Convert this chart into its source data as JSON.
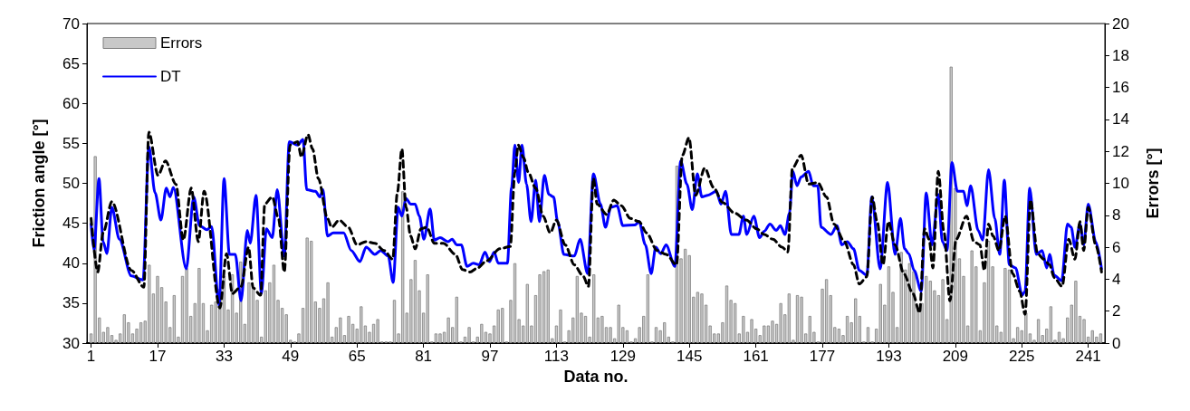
{
  "chart_data": {
    "type": "bar",
    "xlabel": "Data no.",
    "ylabel": "Friction angle [°]",
    "y2label": "Errors [°]",
    "legend": "top left",
    "x": [
      1,
      2,
      3,
      4,
      5,
      6,
      7,
      8,
      9,
      10,
      11,
      12,
      13,
      14,
      15,
      16,
      17,
      18,
      19,
      20,
      21,
      22,
      23,
      24,
      25,
      26,
      27,
      28,
      29,
      30,
      31,
      32,
      33,
      34,
      35,
      36,
      37,
      38,
      39,
      40,
      41,
      42,
      43,
      44,
      45,
      46,
      47,
      48,
      49,
      50,
      51,
      52,
      53,
      54,
      55,
      56,
      57,
      58,
      59,
      60,
      61,
      62,
      63,
      64,
      65,
      66,
      67,
      68,
      69,
      70,
      71,
      72,
      73,
      74,
      75,
      76,
      77,
      78,
      79,
      80,
      81,
      82,
      83,
      84,
      85,
      86,
      87,
      88,
      89,
      90,
      91,
      92,
      93,
      94,
      95,
      96,
      97,
      98,
      99,
      100,
      101,
      102,
      103,
      104,
      105,
      106,
      107,
      108,
      109,
      110,
      111,
      112,
      113,
      114,
      115,
      116,
      117,
      118,
      119,
      120,
      121,
      122,
      123,
      124,
      125,
      126,
      127,
      128,
      129,
      130,
      131,
      132,
      133,
      134,
      135,
      136,
      137,
      138,
      139,
      140,
      141,
      142,
      143,
      144,
      145,
      146,
      147,
      148,
      149,
      150,
      151,
      152,
      153,
      154,
      155,
      156,
      157,
      158,
      159,
      160,
      161,
      162,
      163,
      164,
      165,
      166,
      167,
      168,
      169,
      170,
      171,
      172,
      173,
      174,
      175,
      176,
      177,
      178,
      179,
      180,
      181,
      182,
      183,
      184,
      185,
      186,
      187,
      188,
      189,
      190,
      191,
      192,
      193,
      194,
      195,
      196,
      197,
      198,
      199,
      200,
      201,
      202,
      203,
      204,
      205,
      206,
      207,
      208,
      209,
      210,
      211,
      212,
      213,
      214,
      215,
      216,
      217,
      218,
      219,
      220,
      221,
      222,
      223,
      224,
      225,
      226,
      227,
      228,
      229,
      230,
      231,
      232,
      233,
      234,
      235,
      236,
      237,
      238,
      239,
      240,
      241,
      242,
      243,
      244
    ],
    "xlim": [
      0,
      245
    ],
    "xticks": [
      1,
      17,
      33,
      49,
      65,
      81,
      97,
      113,
      129,
      145,
      161,
      177,
      193,
      209,
      225,
      241
    ],
    "ylim": [
      30,
      70
    ],
    "yticks": [
      30,
      35,
      40,
      45,
      50,
      55,
      60,
      65,
      70
    ],
    "y2lim": [
      0,
      20
    ],
    "y2ticks": [
      0,
      2,
      4,
      6,
      8,
      10,
      12,
      14,
      16,
      18,
      20
    ],
    "series": [
      {
        "name": "Errors",
        "axis": "y2",
        "color": "#c8c8c8",
        "values": [
          0.6,
          11.7,
          1.6,
          0.7,
          1.0,
          0.5,
          0.2,
          0.6,
          1.8,
          1.3,
          0.6,
          0.9,
          1.3,
          1.4,
          4.9,
          3.1,
          4.2,
          3.5,
          2.6,
          1.0,
          3.0,
          0.4,
          4.2,
          4.7,
          1.7,
          2.5,
          4.7,
          2.5,
          0.8,
          2.4,
          2.6,
          3.4,
          4.2,
          2.1,
          4.3,
          1.9,
          5.1,
          1.2,
          3.8,
          3.5,
          2.7,
          0.4,
          3.3,
          3.8,
          4.9,
          2.7,
          2.2,
          1.8,
          0.2,
          0.1,
          0.6,
          2.2,
          6.6,
          6.4,
          2.6,
          2.2,
          2.8,
          3.8,
          0.4,
          1.0,
          1.6,
          0.5,
          1.7,
          1.2,
          0.9,
          2.3,
          1.1,
          0.7,
          1.2,
          1.5,
          0.1,
          0.1,
          0.1,
          2.7,
          0.6,
          9.5,
          1.9,
          4.0,
          5.2,
          3.3,
          1.9,
          4.3,
          0.1,
          0.6,
          0.6,
          0.7,
          1.6,
          1.0,
          2.9,
          0.1,
          0.4,
          1.0,
          0.1,
          0.4,
          1.2,
          0.7,
          0.6,
          1.1,
          2.1,
          2.2,
          0.1,
          2.7,
          5.0,
          1.5,
          1.1,
          3.7,
          1.1,
          3.0,
          4.3,
          4.5,
          4.6,
          0.3,
          1.1,
          2.1,
          0.1,
          0.8,
          1.6,
          4.2,
          1.9,
          1.7,
          0.4,
          4.3,
          1.6,
          1.7,
          1.0,
          1.0,
          0.3,
          2.4,
          1.0,
          0.8,
          0.1,
          0.3,
          1.0,
          1.7,
          4.3,
          0.1,
          1.0,
          0.8,
          1.3,
          0.4,
          0.1,
          11.1,
          5.3,
          5.9,
          5.5,
          2.9,
          3.2,
          3.1,
          2.4,
          1.1,
          0.6,
          0.6,
          1.3,
          3.6,
          2.7,
          2.5,
          0.6,
          1.7,
          0.7,
          1.5,
          0.9,
          0.5,
          1.1,
          1.1,
          1.4,
          1.2,
          2.5,
          1.8,
          3.1,
          0.2,
          3.0,
          2.9,
          0.6,
          1.7,
          0.7,
          0.1,
          3.4,
          4.0,
          3.0,
          1.0,
          0.9,
          0.5,
          1.7,
          1.3,
          2.8,
          1.7,
          0.1,
          1.0,
          0.1,
          0.9,
          3.7,
          2.4,
          4.8,
          3.2,
          1.0,
          5.7,
          4.6,
          5.0,
          4.5,
          2.1,
          2.5,
          4.2,
          3.9,
          3.3,
          3.0,
          4.0,
          1.5,
          17.3,
          9.7,
          5.3,
          4.2,
          1.1,
          5.8,
          4.8,
          0.8,
          3.8,
          6.4,
          4.8,
          1.1,
          0.7,
          4.7,
          4.6,
          0.3,
          1.0,
          0.8,
          1.9,
          0.6,
          0.2,
          1.5,
          0.5,
          0.9,
          2.3,
          0.2,
          0.7,
          0.3,
          1.6,
          2.4,
          3.9,
          1.7,
          1.5,
          0.4,
          0.8,
          0.4,
          0.6
        ]
      },
      {
        "name": "DT",
        "type": "line",
        "color": "#0000ff",
        "line_style": "solid",
        "x": [
          1,
          1.7,
          2.9,
          3.9,
          4.8,
          6,
          7.8,
          10.7,
          13.5,
          14.9,
          16.4,
          17.8,
          19.1,
          20,
          20.8,
          23.9,
          25.7,
          27.1,
          28.9,
          30,
          31.8,
          33,
          34.3,
          35.7,
          37.1,
          38.6,
          39.3,
          40.7,
          42,
          43.2,
          44.6,
          45.8,
          47.5,
          48.7,
          50.7,
          52,
          52.9,
          55,
          56.1,
          56.8,
          57.9,
          59.3,
          61.8,
          63.6,
          65.7,
          67.2,
          69.3,
          70.7,
          72.5,
          73.7,
          74.9,
          75.8,
          76.8,
          77.9,
          79,
          80,
          81.1,
          82.6,
          83.6,
          85,
          86.9,
          87.9,
          89,
          90.1,
          91.5,
          93,
          94.4,
          95.8,
          96.9,
          98,
          99,
          101.2,
          102.2,
          103,
          103.9,
          104.7,
          105.8,
          106.9,
          108,
          108.9,
          110.1,
          111.2,
          112.3,
          113.3,
          114.8,
          117.3,
          118.7,
          120.5,
          121.9,
          123.6,
          124.8,
          126.1,
          127.6,
          129,
          131.9,
          132.9,
          134.4,
          135.8,
          136.9,
          138.1,
          139.4,
          141.5,
          142.9,
          144.4,
          145.7,
          146.9,
          148,
          149.4,
          151.5,
          152.6,
          153.7,
          155.1,
          156.9,
          158,
          158.8,
          160.5,
          161.9,
          163,
          164.4,
          165.9,
          166.9,
          168,
          169.1,
          169.9,
          170.9,
          171.9,
          173.7,
          174.8,
          175.9,
          176.7,
          179.1,
          180.5,
          181.7,
          183,
          184.5,
          185.9,
          187.7,
          188.9,
          190.9,
          192.7,
          194.5,
          195.8,
          196.8,
          197.8,
          199.1,
          200.8,
          202,
          203.4,
          204.9,
          205.9,
          207,
          208.2,
          209.5,
          211,
          211.8,
          212.7,
          214.5,
          215.6,
          217,
          218.5,
          219.7,
          220.8,
          222,
          223.5,
          225.1,
          225.8,
          226.9,
          228.5,
          229.9,
          231,
          231.7,
          232.8,
          234.6,
          236,
          236.9,
          237.8,
          239,
          239.9,
          241,
          242.8,
          244.2
        ],
        "values": [
          44.9,
          41.6,
          50.6,
          42.7,
          41.2,
          47,
          43,
          38.4,
          37.9,
          54.6,
          48.8,
          45.4,
          49.4,
          48.3,
          49.5,
          39.3,
          48.3,
          44.7,
          44.2,
          44.6,
          34.7,
          50.6,
          41.1,
          41.1,
          35.3,
          44.1,
          42.5,
          48.5,
          36.2,
          44.3,
          43.2,
          49.2,
          40.9,
          55.2,
          54.8,
          55.5,
          49.2,
          49,
          48.3,
          49.2,
          43.4,
          43.8,
          43.8,
          41.6,
          40.2,
          42,
          41.1,
          41.6,
          40.9,
          37.6,
          47,
          45.9,
          48.1,
          47.4,
          47.4,
          45.9,
          43,
          46.8,
          42.9,
          43.2,
          42.7,
          43,
          42.3,
          42.3,
          39.6,
          40,
          39.8,
          41.4,
          40.2,
          41.4,
          40,
          40,
          49.5,
          54.8,
          50.1,
          54.8,
          49.9,
          45.2,
          50.4,
          45.2,
          51,
          48.6,
          48.3,
          45.2,
          41.1,
          40.9,
          43,
          38.7,
          51.2,
          47.4,
          44.5,
          47,
          47.2,
          44.7,
          44.8,
          45.2,
          42.3,
          38.7,
          42,
          41.2,
          42.3,
          39.6,
          52.8,
          49.9,
          46.7,
          51.2,
          48.3,
          48.5,
          49,
          47.4,
          49,
          43.6,
          43.6,
          45.9,
          43.6,
          45.9,
          43.2,
          44,
          44.9,
          44.1,
          44.7,
          43.6,
          46.3,
          51.5,
          49.7,
          50.8,
          51.5,
          49.7,
          49.7,
          44.5,
          43.6,
          44.7,
          42.3,
          42.7,
          41.8,
          39.1,
          38.5,
          48.3,
          39.3,
          50.1,
          41.1,
          45.6,
          41.8,
          41.2,
          39.1,
          36.5,
          48.8,
          42.3,
          48.6,
          42.7,
          41.6,
          52.6,
          49,
          49,
          47.2,
          49.7,
          44.1,
          42.9,
          51.7,
          45.6,
          41.1,
          50.4,
          39.8,
          39.4,
          36,
          36.5,
          49.4,
          41.1,
          41.6,
          39.4,
          41.1,
          38.5,
          37.8,
          44.9,
          44.5,
          42,
          44.9,
          42.3,
          47.4,
          42.7,
          39.3
        ]
      },
      {
        "type": "line",
        "color": "#000000",
        "line_style": "dashed",
        "x": [
          1,
          2.6,
          3.9,
          6,
          10.7,
          13.7,
          14.9,
          17.1,
          18.9,
          21.4,
          23.2,
          25.1,
          26.8,
          28.2,
          32,
          33.6,
          35,
          37.1,
          38.9,
          40,
          41.8,
          42.8,
          44.6,
          46.1,
          47.5,
          48.9,
          50.7,
          51.6,
          53.2,
          54.3,
          55.7,
          57.9,
          58.9,
          60.7,
          62.9,
          65,
          67.2,
          69.3,
          71.5,
          73.6,
          74.7,
          75.8,
          76.8,
          77.9,
          79,
          80.4,
          81.8,
          83.6,
          85.8,
          88.7,
          90.4,
          92.2,
          94,
          96.2,
          99.4,
          101.9,
          103,
          103.8,
          105.1,
          106.2,
          108,
          109.8,
          111.5,
          113,
          115.1,
          117.3,
          119.4,
          120.7,
          121.9,
          122.8,
          125.1,
          126.8,
          128.6,
          130.8,
          132.9,
          134.7,
          137.2,
          139.4,
          141.9,
          143.3,
          144.9,
          146.5,
          148.7,
          150.8,
          153,
          155.8,
          158.7,
          161.2,
          163,
          165.1,
          167.3,
          168.7,
          169.8,
          171.9,
          173.7,
          175.9,
          178,
          179.8,
          182.3,
          184.5,
          185.9,
          187.7,
          189,
          190.2,
          191.6,
          192.9,
          194.5,
          196.6,
          198.8,
          200.4,
          201.6,
          202.7,
          203.6,
          204.9,
          206.3,
          207.7,
          209.2,
          211.7,
          213.5,
          214.9,
          216,
          217,
          218.1,
          219.5,
          221,
          222.8,
          224.5,
          225.8,
          227.1,
          228.8,
          230.3,
          231.7,
          232.8,
          234.7,
          236.3,
          237.8,
          239,
          239.9,
          241,
          242.8,
          244.2
        ],
        "values": [
          45.6,
          38.9,
          43.8,
          47.7,
          39.1,
          37,
          56.4,
          51,
          52.8,
          49.9,
          42.9,
          49.4,
          42.7,
          49,
          34.4,
          41.2,
          36.2,
          37.1,
          42,
          36.9,
          36,
          47.4,
          48.3,
          45.6,
          38.9,
          54.8,
          55.2,
          53.3,
          56.1,
          54.3,
          50.6,
          45.6,
          44.5,
          45.4,
          44.5,
          42.3,
          42.7,
          42.5,
          41.6,
          40.5,
          48.8,
          54.3,
          47,
          43.4,
          41.8,
          44.3,
          44.5,
          42.5,
          42.5,
          41.1,
          39.2,
          38.9,
          39.4,
          40.3,
          41.8,
          42.1,
          51.4,
          54.8,
          53.2,
          51.4,
          49.4,
          45.9,
          43.8,
          45.4,
          42.3,
          39.8,
          38.4,
          37.1,
          50.6,
          47.4,
          46.1,
          47.9,
          47.2,
          45.6,
          45.2,
          43.8,
          41.6,
          41.1,
          39.8,
          53.5,
          55.7,
          48.5,
          51.9,
          49.5,
          47.6,
          46.3,
          45.4,
          44.3,
          43.6,
          43,
          42,
          41.4,
          51.9,
          53.5,
          49.9,
          50.1,
          48.3,
          44.9,
          42.7,
          39.8,
          37.4,
          38.3,
          48.3,
          45.2,
          39.8,
          45.2,
          42.3,
          38.7,
          36.2,
          33.8,
          44.3,
          43,
          39.4,
          51.5,
          43.8,
          35.3,
          43,
          45.9,
          42.7,
          42.3,
          39.1,
          44.9,
          43.4,
          41.6,
          45.9,
          38.7,
          36.5,
          33.6,
          47.9,
          41.2,
          40.5,
          39.8,
          38.2,
          37.1,
          43,
          40.5,
          45.2,
          41.6,
          47,
          42.3,
          38.9
        ]
      }
    ]
  }
}
